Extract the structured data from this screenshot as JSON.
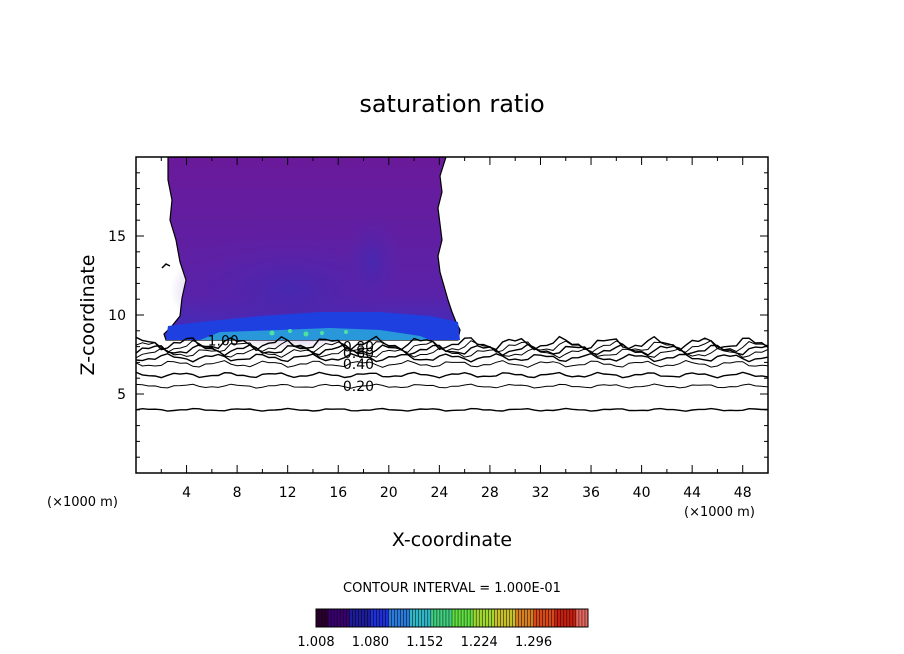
{
  "chart_data": {
    "type": "contour",
    "title": "saturation ratio",
    "xlabel": "X-coordinate",
    "ylabel": "Z-coordinate",
    "x_units": "(×1000 m)",
    "y_units": "(×1000 m)",
    "xlim": [
      0,
      50
    ],
    "ylim": [
      0,
      20
    ],
    "x_ticks": [
      4,
      8,
      12,
      16,
      20,
      24,
      28,
      32,
      36,
      40,
      44,
      48
    ],
    "y_ticks": [
      5,
      10,
      15
    ],
    "contour_interval_text": "CONTOUR INTERVAL = 1.000E-01",
    "contour_labels": [
      {
        "text": "1.00",
        "x": 6.9,
        "z": 8.4
      },
      {
        "text": "0.80",
        "x": 17.6,
        "z": 8.0
      },
      {
        "text": "0.60",
        "x": 17.6,
        "z": 7.6
      },
      {
        "text": "0.40",
        "x": 17.6,
        "z": 6.9
      },
      {
        "text": "0.20",
        "x": 17.6,
        "z": 5.5
      }
    ],
    "contour_levels_z": [
      4.0,
      5.5,
      6.2,
      6.9,
      7.3,
      7.6,
      7.8,
      8.0,
      8.2
    ],
    "cloud_region": {
      "x_range": [
        2.5,
        25.5
      ],
      "z_range": [
        8.5,
        20
      ],
      "base_z": 8.5
    },
    "colorbar": {
      "min": 1.008,
      "max": 1.368,
      "tick_labels": [
        "1.008",
        "1.080",
        "1.152",
        "1.224",
        "1.296"
      ],
      "colors": [
        "#2a0030",
        "#3a0070",
        "#1c1c9c",
        "#2030d8",
        "#2a7adc",
        "#30b8c8",
        "#40d080",
        "#60e040",
        "#a0d830",
        "#c8c028",
        "#d88020",
        "#d84818",
        "#c82010",
        "#e86860"
      ]
    }
  }
}
